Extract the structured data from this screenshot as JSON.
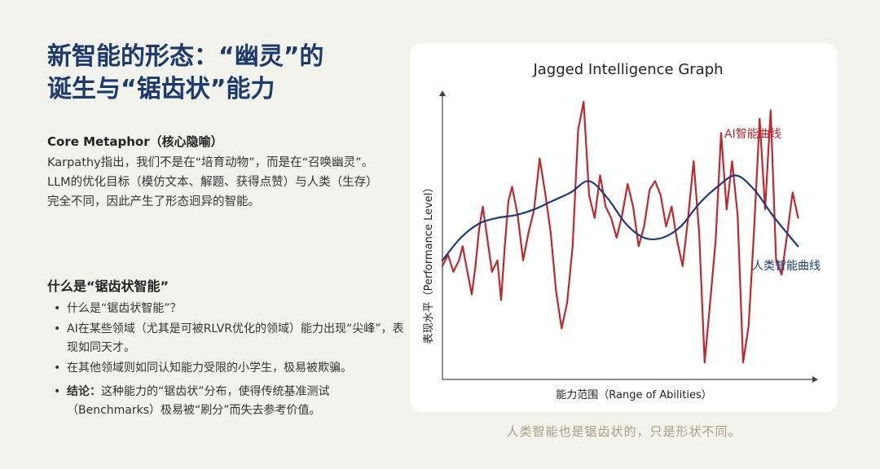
{
  "title": {
    "line1": "新智能的形态：“幽灵”的",
    "line2": "诞生与“锯齿状”能力"
  },
  "metaphor": {
    "heading": "Core Metaphor（核心隐喻）",
    "body": "Karpathy指出，我们不是在“培育动物”，而是在“召唤幽灵”。 LLM的优化目标（模仿文本、解题、获得点赞）与人类（生存）完全不同，因此产生了形态迥异的智能。"
  },
  "jagged": {
    "heading": "什么是“锯齿状智能”",
    "bullets": [
      "什么是“锯齿状智能”？",
      "AI在某些领域（尤其是可被RLVR优化的领域）能力出现“尖峰”，表现如同天才。",
      "在其他领域则如同认知能力受限的小学生，极易被欺骗。"
    ],
    "conclusion_label": "结论：",
    "conclusion_text": "这种能力的“锯齿状”分布，使得传统基准测试（Benchmarks）极易被“刷分”而失去参考价值。"
  },
  "caption": "人类智能也是锯齿状的，只是形状不同。",
  "chart_data": {
    "type": "line",
    "title": "Jagged Intelligence Graph",
    "xlabel": "能力范围（Range of Abilities）",
    "ylabel": "表现水平（Performance Level）",
    "xlim": [
      0,
      100
    ],
    "ylim": [
      0,
      100
    ],
    "grid": false,
    "series": [
      {
        "name": "AI智能曲线",
        "color": "#c0282d",
        "x": [
          0,
          1.5,
          3,
          4.5,
          5.5,
          6.5,
          8,
          9,
          10,
          11,
          12,
          13.5,
          15,
          16,
          17,
          18,
          19,
          20.5,
          22,
          23.5,
          25,
          26.5,
          28,
          29.5,
          31,
          32.5,
          34,
          35.5,
          37,
          38.5,
          40,
          41.5,
          43,
          44.5,
          46,
          47.5,
          49,
          50.5,
          52,
          53.5,
          55,
          56.5,
          58,
          59.5,
          61,
          62.5,
          64,
          65.5,
          67,
          68.5,
          70,
          71.5,
          73,
          74.5,
          76,
          77.5,
          79,
          80.5,
          82,
          83.5,
          85,
          86.5,
          88,
          89.5,
          91,
          92.5,
          94,
          95.5,
          97
        ],
        "y": [
          40,
          44,
          38,
          42,
          47,
          40,
          30,
          40,
          53,
          61,
          52,
          38,
          42,
          28,
          47,
          63,
          68,
          58,
          42,
          52,
          60,
          78,
          66,
          52,
          31,
          18,
          27,
          47,
          88,
          98,
          65,
          57,
          72,
          61,
          57,
          50,
          58,
          69,
          61,
          47,
          54,
          67,
          70,
          65,
          54,
          61,
          49,
          40,
          57,
          77,
          52,
          6,
          27,
          49,
          87,
          60,
          77,
          58,
          6,
          19,
          53,
          92,
          60,
          95,
          42,
          37,
          51,
          66,
          57
        ],
        "labels": [
          {
            "text": "AI智能曲线",
            "at": "upper-right"
          }
        ]
      },
      {
        "name": "人类智能曲线",
        "color": "#1d3a7a",
        "x": [
          0,
          5,
          10,
          15,
          20,
          25,
          30,
          35,
          40,
          45,
          50,
          55,
          60,
          65,
          70,
          75,
          80,
          85,
          90,
          95,
          97
        ],
        "y": [
          42,
          50,
          55,
          57,
          58,
          60,
          63,
          66,
          70,
          64,
          55,
          50,
          50,
          54,
          62,
          68,
          72,
          67,
          58,
          50,
          47
        ],
        "labels": [
          {
            "text": "人类智能曲线",
            "at": "right-end"
          }
        ]
      }
    ]
  }
}
